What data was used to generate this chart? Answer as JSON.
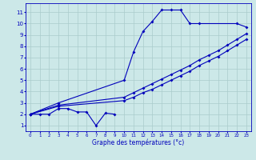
{
  "xlabel": "Graphe des températures (°c)",
  "bg_color": "#cce8e8",
  "grid_color": "#aacccc",
  "line_color": "#0000bb",
  "xlim_min": -0.5,
  "xlim_max": 23.5,
  "ylim_min": 0.5,
  "ylim_max": 11.8,
  "xticks": [
    0,
    1,
    2,
    3,
    4,
    5,
    6,
    7,
    8,
    9,
    10,
    11,
    12,
    13,
    14,
    15,
    16,
    17,
    18,
    19,
    20,
    21,
    22,
    23
  ],
  "yticks": [
    1,
    2,
    3,
    4,
    5,
    6,
    7,
    8,
    9,
    10,
    11
  ],
  "series1_x": [
    0,
    1,
    2,
    3,
    4,
    5,
    6,
    7,
    8,
    9
  ],
  "series1_y": [
    2.0,
    2.0,
    2.0,
    2.5,
    2.5,
    2.2,
    2.2,
    1.0,
    2.1,
    2.0
  ],
  "series2_x": [
    0,
    3,
    10,
    11,
    12,
    13,
    14,
    15,
    16,
    17,
    18,
    22,
    23
  ],
  "series2_y": [
    2.0,
    3.0,
    5.0,
    7.5,
    9.3,
    10.2,
    11.2,
    11.2,
    11.2,
    10.0,
    10.0,
    10.0,
    9.7
  ],
  "series3_x": [
    0,
    3,
    10,
    11,
    12,
    13,
    14,
    15,
    16,
    17,
    18,
    19,
    20,
    21,
    22,
    23
  ],
  "series3_y": [
    2.0,
    2.8,
    3.5,
    3.9,
    4.3,
    4.7,
    5.1,
    5.5,
    5.9,
    6.3,
    6.8,
    7.2,
    7.6,
    8.1,
    8.6,
    9.1
  ],
  "series4_x": [
    0,
    3,
    10,
    11,
    12,
    13,
    14,
    15,
    16,
    17,
    18,
    19,
    20,
    21,
    22,
    23
  ],
  "series4_y": [
    2.0,
    2.7,
    3.2,
    3.5,
    3.9,
    4.2,
    4.6,
    5.0,
    5.4,
    5.8,
    6.3,
    6.7,
    7.1,
    7.6,
    8.1,
    8.6
  ]
}
